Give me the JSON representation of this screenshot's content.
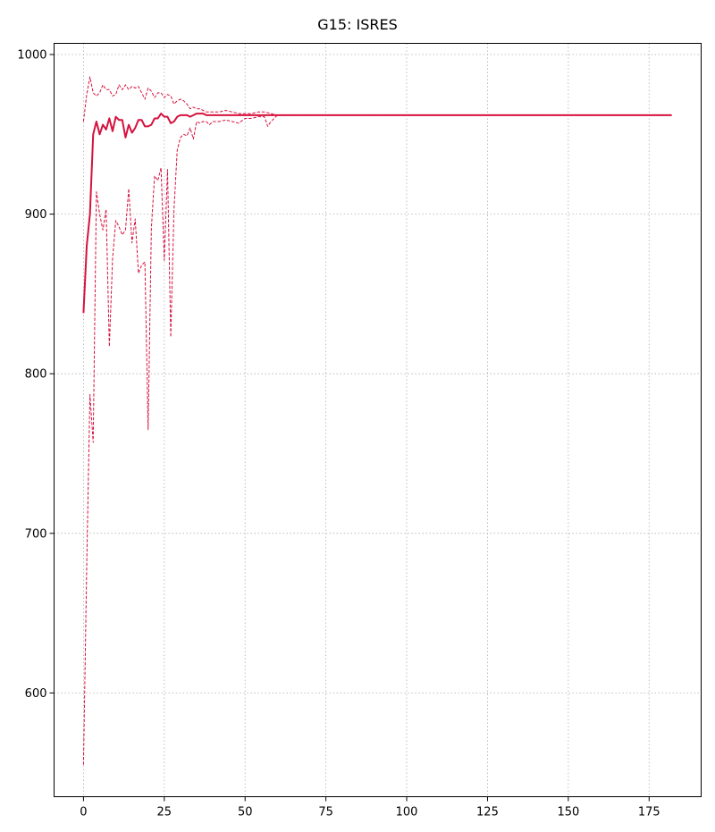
{
  "chart_data": {
    "type": "line",
    "title": "G15: ISRES",
    "xlabel": "",
    "ylabel": "",
    "xlim": [
      -9.1,
      191.1
    ],
    "ylim": [
      535,
      1007
    ],
    "xticks": [
      0,
      25,
      50,
      75,
      100,
      125,
      150,
      175
    ],
    "yticks": [
      600,
      700,
      800,
      900,
      1000
    ],
    "grid": true,
    "color": "#d6123e",
    "series": [
      {
        "role": "mean",
        "style": "solid",
        "x": [
          0,
          1,
          2,
          3,
          4,
          5,
          6,
          7,
          8,
          9,
          10,
          11,
          12,
          13,
          14,
          15,
          16,
          17,
          18,
          19,
          20,
          21,
          22,
          23,
          24,
          25,
          26,
          27,
          28,
          29,
          30,
          31,
          32,
          33,
          34,
          35,
          36,
          37,
          38,
          39,
          40,
          45,
          50,
          55,
          60,
          70,
          80,
          100,
          125,
          150,
          175,
          182
        ],
        "y": [
          838,
          880,
          900,
          950,
          958,
          950,
          956,
          953,
          960,
          952,
          961,
          959,
          959,
          948,
          956,
          951,
          954,
          959,
          959,
          955,
          955,
          956,
          960,
          960,
          963,
          961,
          961,
          957,
          958,
          961,
          962,
          962,
          962,
          961,
          962,
          963,
          963,
          963,
          962,
          962,
          962,
          962,
          962,
          962,
          962,
          962,
          962,
          962,
          962,
          962,
          962,
          962
        ]
      },
      {
        "role": "upper",
        "style": "dashed",
        "x": [
          0,
          1,
          2,
          3,
          4,
          5,
          6,
          7,
          8,
          9,
          10,
          11,
          12,
          13,
          14,
          15,
          16,
          17,
          18,
          19,
          20,
          21,
          22,
          23,
          24,
          25,
          26,
          27,
          28,
          29,
          30,
          31,
          32,
          33,
          34,
          35,
          36,
          37,
          38,
          39,
          40,
          42,
          44,
          46,
          48,
          50,
          52,
          54,
          56,
          58,
          60,
          65,
          70,
          100,
          182
        ],
        "y": [
          958,
          975,
          986,
          976,
          974,
          976,
          981,
          978,
          978,
          974,
          975,
          981,
          978,
          981,
          978,
          980,
          979,
          980,
          976,
          972,
          979,
          977,
          973,
          976,
          976,
          973,
          975,
          974,
          969,
          971,
          972,
          971,
          969,
          966,
          967,
          966,
          966,
          965,
          964,
          964,
          964,
          964,
          965,
          964,
          963,
          963,
          963,
          964,
          964,
          963,
          962,
          962,
          962,
          962,
          962
        ]
      },
      {
        "role": "lower",
        "style": "dashed",
        "x": [
          0,
          1,
          2,
          3,
          4,
          5,
          6,
          7,
          8,
          9,
          10,
          11,
          12,
          13,
          14,
          15,
          16,
          17,
          18,
          19,
          20,
          21,
          22,
          23,
          24,
          25,
          26,
          27,
          28,
          29,
          30,
          31,
          32,
          33,
          34,
          35,
          36,
          37,
          38,
          39,
          40,
          42,
          44,
          46,
          48,
          50,
          52,
          54,
          56,
          57,
          58,
          60,
          65,
          70,
          100,
          182
        ],
        "y": [
          555,
          680,
          787,
          757,
          914,
          900,
          890,
          903,
          817,
          872,
          896,
          892,
          887,
          890,
          916,
          882,
          897,
          863,
          868,
          870,
          765,
          891,
          924,
          921,
          929,
          871,
          928,
          823,
          903,
          940,
          948,
          950,
          949,
          954,
          947,
          958,
          957,
          958,
          958,
          956,
          958,
          958,
          959,
          958,
          957,
          960,
          960,
          961,
          961,
          955,
          958,
          962,
          962,
          962,
          962,
          962
        ]
      }
    ]
  }
}
